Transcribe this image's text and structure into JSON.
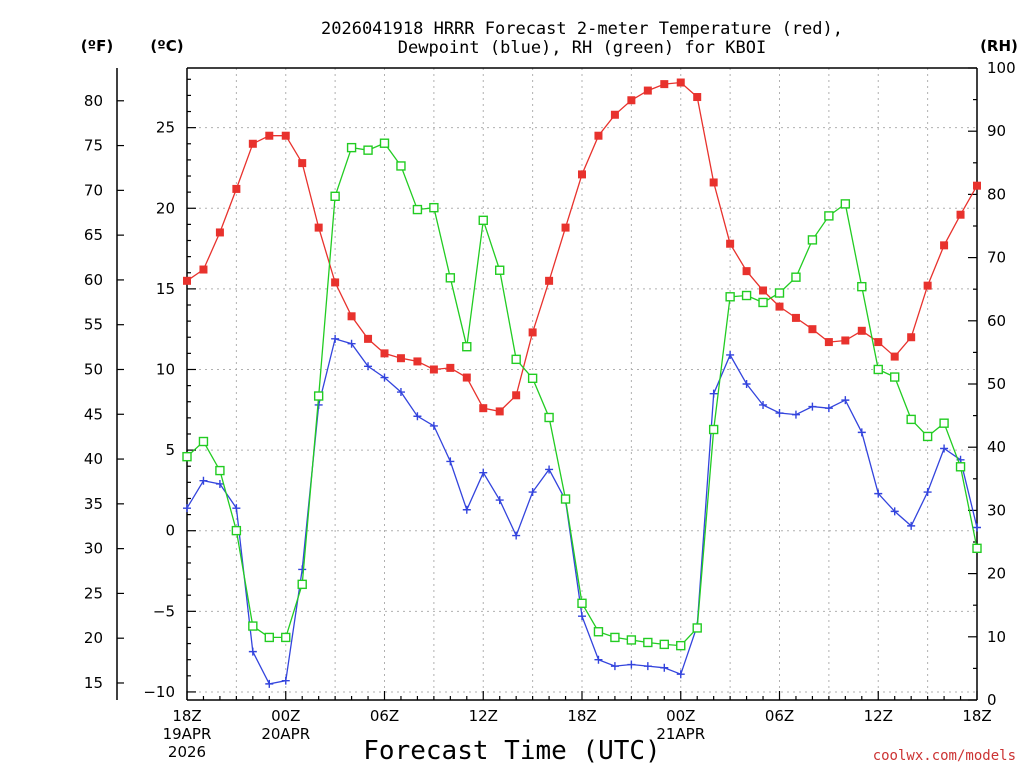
{
  "chart_data": {
    "type": "line",
    "title_line1": "2026041918 HRRR Forecast 2-meter Temperature (red),",
    "title_line2": "Dewpoint (blue), RH (green) for KBOI",
    "xlabel": "Forecast Time (UTC)",
    "credit": "coolwx.com/models",
    "credit_color": "#cc3333",
    "units": {
      "fahrenheit": "(ºF)",
      "celsius": "(ºC)",
      "rh": "(RH)"
    },
    "ylim_celsius": [
      -10.5,
      28.7
    ],
    "ylim_rh": [
      0,
      100
    ],
    "hours": [
      0,
      1,
      2,
      3,
      4,
      5,
      6,
      7,
      8,
      9,
      10,
      11,
      12,
      13,
      14,
      15,
      16,
      17,
      18,
      19,
      20,
      21,
      22,
      23,
      24,
      25,
      26,
      27,
      28,
      29,
      30,
      31,
      32,
      33,
      34,
      35,
      36,
      37,
      38,
      39,
      40,
      41,
      42,
      43,
      44,
      45,
      46,
      47,
      48
    ],
    "x_ticks": [
      {
        "hour": 0,
        "lines": [
          "18Z",
          "19APR",
          "2026"
        ]
      },
      {
        "hour": 6,
        "lines": [
          "00Z",
          "20APR"
        ]
      },
      {
        "hour": 12,
        "lines": [
          "06Z"
        ]
      },
      {
        "hour": 18,
        "lines": [
          "12Z"
        ]
      },
      {
        "hour": 24,
        "lines": [
          "18Z"
        ]
      },
      {
        "hour": 30,
        "lines": [
          "00Z",
          "21APR"
        ]
      },
      {
        "hour": 36,
        "lines": [
          "06Z"
        ]
      },
      {
        "hour": 42,
        "lines": [
          "12Z"
        ]
      },
      {
        "hour": 48,
        "lines": [
          "18Z"
        ]
      }
    ],
    "c_ticks": [
      -10,
      -5,
      0,
      5,
      10,
      15,
      20,
      25
    ],
    "f_ticks": [
      15,
      20,
      25,
      30,
      35,
      40,
      45,
      50,
      55,
      60,
      65,
      70,
      75,
      80
    ],
    "rh_ticks": [
      0,
      10,
      20,
      30,
      40,
      50,
      60,
      70,
      80,
      90,
      100
    ],
    "series": [
      {
        "name": "2-meter Temperature",
        "color": "#e8322d",
        "marker": "filled-square",
        "axis": "celsius",
        "values": [
          15.5,
          16.2,
          18.5,
          21.2,
          24.0,
          24.5,
          24.5,
          22.8,
          18.8,
          15.4,
          13.3,
          11.9,
          11.0,
          10.7,
          10.5,
          10.0,
          10.1,
          9.5,
          7.6,
          7.4,
          8.4,
          12.3,
          15.5,
          18.8,
          22.1,
          24.5,
          25.8,
          26.7,
          27.3,
          27.7,
          27.8,
          26.9,
          21.6,
          17.8,
          16.1,
          14.9,
          13.9,
          13.2,
          12.5,
          11.7,
          11.8,
          12.4,
          11.7,
          10.8,
          12.0,
          15.2,
          17.7,
          19.6,
          21.4
        ]
      },
      {
        "name": "Dewpoint",
        "color": "#3344dd",
        "marker": "plus",
        "axis": "celsius",
        "values": [
          1.4,
          3.1,
          2.9,
          1.4,
          -7.5,
          -9.5,
          -9.3,
          -2.4,
          7.8,
          11.9,
          11.6,
          10.2,
          9.5,
          8.6,
          7.1,
          6.5,
          4.3,
          1.3,
          3.6,
          1.9,
          -0.3,
          2.4,
          3.8,
          1.9,
          -5.3,
          -8.0,
          -8.4,
          -8.3,
          -8.4,
          -8.5,
          -8.9,
          -5.9,
          8.5,
          10.9,
          9.1,
          7.8,
          7.3,
          7.2,
          7.7,
          7.6,
          8.1,
          6.1,
          2.3,
          1.2,
          0.3,
          2.4,
          5.1,
          4.4,
          0.2
        ]
      },
      {
        "name": "RH",
        "color": "#22cc22",
        "marker": "open-square",
        "axis": "rh",
        "values": [
          38.5,
          40.9,
          36.3,
          26.8,
          11.7,
          9.9,
          9.9,
          18.3,
          48.1,
          79.7,
          87.4,
          87.0,
          88.1,
          84.5,
          77.6,
          77.9,
          66.8,
          55.9,
          75.9,
          68.0,
          53.9,
          50.9,
          44.7,
          31.8,
          15.3,
          10.8,
          9.9,
          9.5,
          9.1,
          8.8,
          8.6,
          11.4,
          42.8,
          63.8,
          64.0,
          62.9,
          64.4,
          66.9,
          72.8,
          76.6,
          78.5,
          65.4,
          52.3,
          51.1,
          44.4,
          41.7,
          43.8,
          36.9,
          24.0
        ]
      }
    ]
  }
}
